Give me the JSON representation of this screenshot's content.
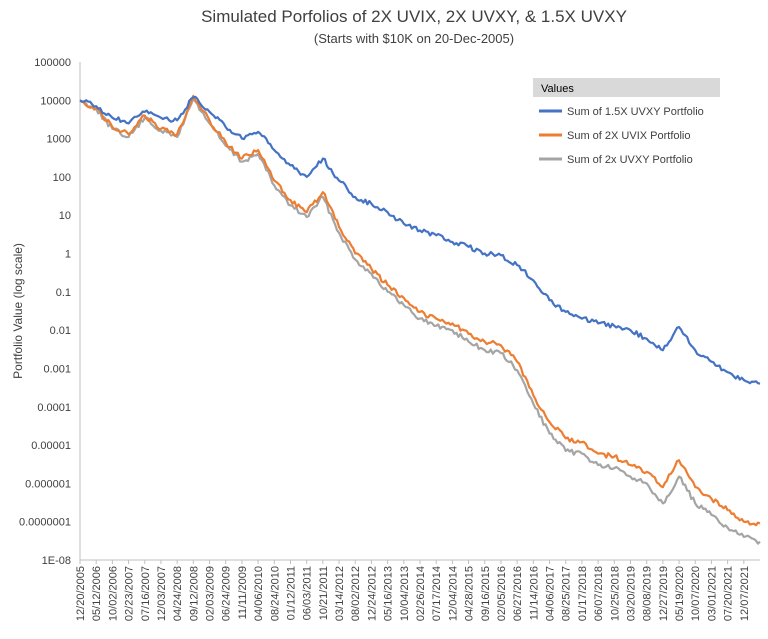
{
  "chart_data": {
    "type": "line",
    "title": "Simulated Porfolios of 2X UVIX, 2X UVXY, & 1.5X UVXY",
    "subtitle": "(Starts with $10K on 20-Dec-2005)",
    "xlabel": "",
    "ylabel": "Portfolio Value (log scale)",
    "y_scale": "log",
    "ylim": [
      1e-08,
      100000
    ],
    "y_tick_labels": [
      "100000",
      "10000",
      "1000",
      "100",
      "10",
      "1",
      "0.1",
      "0.01",
      "0.001",
      "0.0001",
      "0.00001",
      "0.000001",
      "0.0000001",
      "1E-08"
    ],
    "x_tick_labels": [
      "12/20/2005",
      "05/12/2006",
      "10/02/2006",
      "02/23/2007",
      "07/16/2007",
      "12/03/2007",
      "04/24/2008",
      "09/12/2008",
      "02/03/2009",
      "06/24/2009",
      "11/11/2009",
      "04/06/2010",
      "08/24/2010",
      "01/12/2011",
      "06/03/2011",
      "10/21/2011",
      "03/14/2012",
      "08/02/2012",
      "12/24/2012",
      "05/16/2013",
      "10/04/2013",
      "02/26/2014",
      "07/17/2014",
      "12/04/2014",
      "04/28/2015",
      "09/16/2015",
      "02/05/2016",
      "06/27/2016",
      "11/14/2016",
      "04/06/2017",
      "08/25/2017",
      "01/17/2018",
      "06/07/2018",
      "10/25/2018",
      "03/20/2019",
      "08/08/2019",
      "12/27/2019",
      "05/19/2020",
      "10/07/2020",
      "03/01/2021",
      "07/20/2021",
      "12/07/2021"
    ],
    "x": [
      "12/20/2005",
      "05/12/2006",
      "10/02/2006",
      "02/23/2007",
      "07/16/2007",
      "12/03/2007",
      "04/24/2008",
      "09/12/2008",
      "02/03/2009",
      "06/24/2009",
      "11/11/2009",
      "04/06/2010",
      "08/24/2010",
      "01/12/2011",
      "06/03/2011",
      "10/21/2011",
      "03/14/2012",
      "08/02/2012",
      "12/24/2012",
      "05/16/2013",
      "10/04/2013",
      "02/26/2014",
      "07/17/2014",
      "12/04/2014",
      "04/28/2015",
      "09/16/2015",
      "02/05/2016",
      "06/27/2016",
      "11/14/2016",
      "04/06/2017",
      "08/25/2017",
      "01/17/2018",
      "06/07/2018",
      "10/25/2018",
      "03/20/2019",
      "08/08/2019",
      "12/27/2019",
      "05/19/2020",
      "10/07/2020",
      "03/01/2021",
      "07/20/2021",
      "12/07/2021",
      "03/2022"
    ],
    "legend": {
      "title": "Values",
      "position": "top-right"
    },
    "series": [
      {
        "name": "Sum of 1.5X UVXY Portfolio",
        "color": "#4472C4",
        "values": [
          10000,
          7000,
          3500,
          2500,
          5000,
          3500,
          3000,
          12000,
          5000,
          2000,
          1000,
          1500,
          500,
          200,
          100,
          300,
          80,
          30,
          20,
          12,
          6,
          4,
          3,
          2,
          1.5,
          1,
          0.9,
          0.5,
          0.2,
          0.06,
          0.03,
          0.02,
          0.015,
          0.013,
          0.01,
          0.006,
          0.003,
          0.012,
          0.003,
          0.0015,
          0.0008,
          0.0005,
          0.0004
        ]
      },
      {
        "name": "Sum of 2X UVIX Portfolio",
        "color": "#ED7D31",
        "values": [
          10000,
          6000,
          2000,
          1300,
          4000,
          1800,
          1300,
          13000,
          3000,
          800,
          300,
          500,
          80,
          25,
          12,
          40,
          5,
          1,
          0.4,
          0.15,
          0.07,
          0.03,
          0.02,
          0.015,
          0.008,
          0.005,
          0.004,
          0.0015,
          0.0002,
          4e-05,
          1.5e-05,
          1.2e-05,
          6e-06,
          5e-06,
          3e-06,
          2e-06,
          8e-07,
          4e-06,
          8e-07,
          4e-07,
          2e-07,
          1e-07,
          9e-08
        ]
      },
      {
        "name": "Sum of 2x UVXY Portfolio",
        "color": "#A5A5A5",
        "values": [
          10000,
          6000,
          1800,
          1100,
          3500,
          1600,
          1100,
          11000,
          2500,
          650,
          250,
          400,
          60,
          18,
          9,
          30,
          3.5,
          0.7,
          0.3,
          0.1,
          0.045,
          0.02,
          0.013,
          0.01,
          0.005,
          0.003,
          0.0025,
          0.0009,
          0.00012,
          2e-05,
          7e-06,
          6e-06,
          3e-06,
          2.5e-06,
          1.5e-06,
          1e-06,
          3e-07,
          1.5e-06,
          3e-07,
          1.5e-07,
          7e-08,
          4e-08,
          3e-08
        ]
      }
    ],
    "grid": false
  }
}
